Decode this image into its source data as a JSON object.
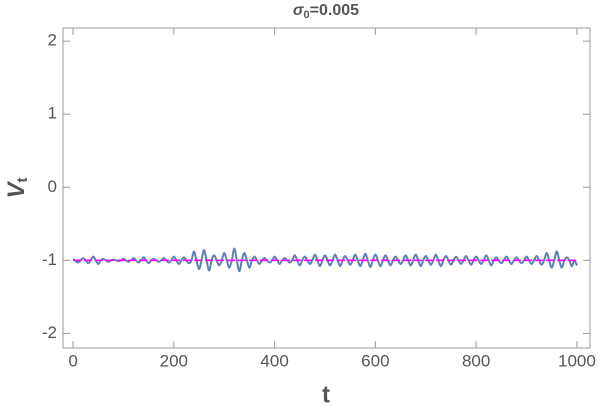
{
  "chart_data": {
    "type": "line",
    "title": {
      "symbol": "σ",
      "subscript": "0",
      "text": "=0.005"
    },
    "xlabel": "t",
    "ylabel": {
      "base": "V",
      "subscript": "t"
    },
    "xlim": [
      -20,
      1026
    ],
    "ylim": [
      -2.2,
      2.18
    ],
    "xticks": [
      0,
      200,
      400,
      600,
      800,
      1000
    ],
    "yticks": [
      -2,
      -1,
      0,
      1,
      2
    ],
    "series": [
      {
        "color": "#5e81b5",
        "dashed": false,
        "x": [
          0,
          5,
          10,
          15,
          20,
          25,
          30,
          35,
          40,
          45,
          50,
          55,
          60,
          65,
          70,
          75,
          80,
          85,
          90,
          95,
          100,
          105,
          110,
          115,
          120,
          125,
          130,
          135,
          140,
          145,
          150,
          155,
          160,
          165,
          170,
          175,
          180,
          185,
          190,
          195,
          200,
          205,
          210,
          215,
          220,
          225,
          230,
          235,
          240,
          245,
          250,
          255,
          260,
          265,
          270,
          275,
          280,
          285,
          290,
          295,
          300,
          305,
          310,
          315,
          320,
          325,
          330,
          335,
          340,
          345,
          350,
          355,
          360,
          365,
          370,
          375,
          380,
          385,
          390,
          395,
          400,
          405,
          410,
          415,
          420,
          425,
          430,
          435,
          440,
          445,
          450,
          455,
          460,
          465,
          470,
          475,
          480,
          485,
          490,
          495,
          500,
          505,
          510,
          515,
          520,
          525,
          530,
          535,
          540,
          545,
          550,
          555,
          560,
          565,
          570,
          575,
          580,
          585,
          590,
          595,
          600,
          605,
          610,
          615,
          620,
          625,
          630,
          635,
          640,
          645,
          650,
          655,
          660,
          665,
          670,
          675,
          680,
          685,
          690,
          695,
          700,
          705,
          710,
          715,
          720,
          725,
          730,
          735,
          740,
          745,
          750,
          755,
          760,
          765,
          770,
          775,
          780,
          785,
          790,
          795,
          800,
          805,
          810,
          815,
          820,
          825,
          830,
          835,
          840,
          845,
          850,
          855,
          860,
          865,
          870,
          875,
          880,
          885,
          890,
          895,
          900,
          905,
          910,
          915,
          920,
          925,
          930,
          935,
          940,
          945,
          950,
          955,
          960,
          965,
          970,
          975,
          980,
          985,
          990,
          995,
          1000
        ],
        "values": [
          -0.98,
          -1.01,
          -1.03,
          -1.0,
          -0.97,
          -1.0,
          -1.04,
          -1.0,
          -0.95,
          -1.0,
          -1.05,
          -1.0,
          -0.98,
          -1.0,
          -1.02,
          -1.0,
          -0.99,
          -1.0,
          -1.01,
          -1.0,
          -0.98,
          -1.0,
          -1.02,
          -1.0,
          -0.97,
          -1.0,
          -1.03,
          -1.0,
          -0.96,
          -1.0,
          -1.04,
          -1.0,
          -0.98,
          -1.0,
          -1.02,
          -1.0,
          -0.97,
          -1.0,
          -1.03,
          -1.0,
          -0.95,
          -1.0,
          -1.05,
          -1.0,
          -0.96,
          -1.0,
          -1.04,
          -1.0,
          -0.88,
          -1.0,
          -1.12,
          -1.0,
          -0.86,
          -1.0,
          -1.14,
          -1.0,
          -0.93,
          -1.0,
          -1.07,
          -1.0,
          -0.9,
          -1.0,
          -1.1,
          -1.0,
          -0.84,
          -1.0,
          -1.15,
          -1.0,
          -0.9,
          -1.0,
          -1.1,
          -1.0,
          -0.95,
          -1.0,
          -1.05,
          -1.0,
          -0.97,
          -1.0,
          -1.03,
          -1.0,
          -0.95,
          -1.0,
          -1.05,
          -1.0,
          -0.97,
          -1.0,
          -1.03,
          -1.0,
          -0.93,
          -1.0,
          -1.07,
          -1.0,
          -0.95,
          -1.0,
          -1.05,
          -1.0,
          -0.92,
          -1.0,
          -1.08,
          -1.0,
          -0.93,
          -1.0,
          -1.07,
          -1.0,
          -0.92,
          -1.0,
          -1.08,
          -1.0,
          -0.94,
          -1.0,
          -1.06,
          -1.0,
          -0.92,
          -1.0,
          -1.08,
          -1.0,
          -0.91,
          -1.0,
          -1.09,
          -1.0,
          -0.92,
          -1.0,
          -1.08,
          -1.0,
          -0.93,
          -1.0,
          -1.07,
          -1.0,
          -0.95,
          -1.0,
          -1.05,
          -1.0,
          -0.93,
          -1.0,
          -1.07,
          -1.0,
          -0.92,
          -1.0,
          -1.08,
          -1.0,
          -0.94,
          -1.0,
          -1.06,
          -1.0,
          -0.92,
          -1.0,
          -1.08,
          -1.0,
          -0.94,
          -1.0,
          -1.06,
          -1.0,
          -0.95,
          -1.0,
          -1.05,
          -1.0,
          -0.94,
          -1.0,
          -1.06,
          -1.0,
          -0.95,
          -1.0,
          -1.05,
          -1.0,
          -0.93,
          -1.0,
          -1.07,
          -1.0,
          -0.96,
          -1.0,
          -1.04,
          -1.0,
          -0.95,
          -1.0,
          -1.05,
          -1.0,
          -0.96,
          -1.0,
          -1.04,
          -1.0,
          -0.95,
          -1.0,
          -1.05,
          -1.0,
          -0.94,
          -1.0,
          -1.06,
          -1.0,
          -0.9,
          -1.0,
          -1.1,
          -1.0,
          -0.88,
          -1.0,
          -1.1,
          -1.0,
          -0.96,
          -1.0,
          -1.08,
          -1.0,
          -1.07
        ]
      },
      {
        "color": "#ff00ff",
        "dashed": true,
        "x": [
          0,
          1000
        ],
        "values": [
          -1,
          -1
        ]
      }
    ]
  }
}
